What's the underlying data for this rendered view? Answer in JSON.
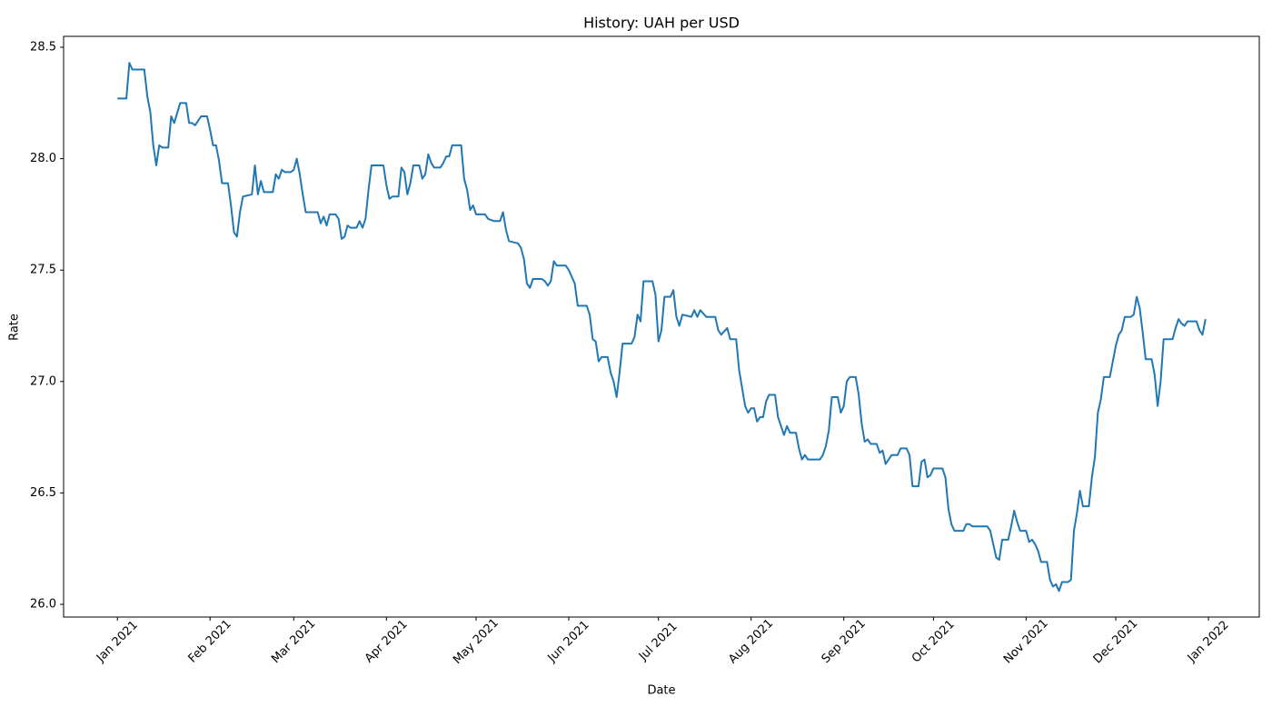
{
  "chart_data": {
    "type": "line",
    "title": "History: UAH per USD",
    "xlabel": "Date",
    "ylabel": "Rate",
    "color": "#1f77b4",
    "grid": false,
    "x": [
      "2021-01-01",
      "2021-01-04",
      "2021-01-05",
      "2021-01-06",
      "2021-01-10",
      "2021-01-11",
      "2021-01-12",
      "2021-01-13",
      "2021-01-14",
      "2021-01-15",
      "2021-01-16",
      "2021-01-18",
      "2021-01-19",
      "2021-01-20",
      "2021-01-22",
      "2021-01-24",
      "2021-01-25",
      "2021-01-26",
      "2021-01-27",
      "2021-01-28",
      "2021-01-29",
      "2021-01-31",
      "2021-02-01",
      "2021-02-02",
      "2021-02-03",
      "2021-02-04",
      "2021-02-05",
      "2021-02-07",
      "2021-02-08",
      "2021-02-09",
      "2021-02-10",
      "2021-02-11",
      "2021-02-12",
      "2021-02-15",
      "2021-02-16",
      "2021-02-17",
      "2021-02-18",
      "2021-02-19",
      "2021-02-22",
      "2021-02-23",
      "2021-02-24",
      "2021-02-25",
      "2021-02-26",
      "2021-02-28",
      "2021-03-01",
      "2021-03-02",
      "2021-03-03",
      "2021-03-04",
      "2021-03-05",
      "2021-03-09",
      "2021-03-10",
      "2021-03-11",
      "2021-03-12",
      "2021-03-13",
      "2021-03-15",
      "2021-03-16",
      "2021-03-17",
      "2021-03-18",
      "2021-03-19",
      "2021-03-20",
      "2021-03-22",
      "2021-03-23",
      "2021-03-24",
      "2021-03-25",
      "2021-03-26",
      "2021-03-27",
      "2021-03-31",
      "2021-04-01",
      "2021-04-02",
      "2021-04-03",
      "2021-04-05",
      "2021-04-06",
      "2021-04-07",
      "2021-04-08",
      "2021-04-09",
      "2021-04-10",
      "2021-04-12",
      "2021-04-13",
      "2021-04-14",
      "2021-04-15",
      "2021-04-16",
      "2021-04-17",
      "2021-04-19",
      "2021-04-20",
      "2021-04-21",
      "2021-04-22",
      "2021-04-23",
      "2021-04-26",
      "2021-04-27",
      "2021-04-28",
      "2021-04-29",
      "2021-04-30",
      "2021-05-01",
      "2021-05-04",
      "2021-05-05",
      "2021-05-07",
      "2021-05-09",
      "2021-05-10",
      "2021-05-11",
      "2021-05-12",
      "2021-05-15",
      "2021-05-16",
      "2021-05-17",
      "2021-05-18",
      "2021-05-19",
      "2021-05-20",
      "2021-05-23",
      "2021-05-24",
      "2021-05-25",
      "2021-05-26",
      "2021-05-27",
      "2021-05-28",
      "2021-05-31",
      "2021-06-01",
      "2021-06-03",
      "2021-06-04",
      "2021-06-07",
      "2021-06-08",
      "2021-06-09",
      "2021-06-10",
      "2021-06-11",
      "2021-06-12",
      "2021-06-14",
      "2021-06-15",
      "2021-06-16",
      "2021-06-17",
      "2021-06-18",
      "2021-06-19",
      "2021-06-22",
      "2021-06-23",
      "2021-06-24",
      "2021-06-25",
      "2021-06-26",
      "2021-06-29",
      "2021-06-30",
      "2021-07-01",
      "2021-07-02",
      "2021-07-03",
      "2021-07-05",
      "2021-07-06",
      "2021-07-07",
      "2021-07-08",
      "2021-07-09",
      "2021-07-12",
      "2021-07-13",
      "2021-07-14",
      "2021-07-15",
      "2021-07-17",
      "2021-07-20",
      "2021-07-21",
      "2021-07-22",
      "2021-07-24",
      "2021-07-25",
      "2021-07-27",
      "2021-07-28",
      "2021-07-29",
      "2021-07-30",
      "2021-07-31",
      "2021-08-01",
      "2021-08-02",
      "2021-08-03",
      "2021-08-04",
      "2021-08-05",
      "2021-08-06",
      "2021-08-07",
      "2021-08-09",
      "2021-08-10",
      "2021-08-11",
      "2021-08-12",
      "2021-08-13",
      "2021-08-14",
      "2021-08-16",
      "2021-08-17",
      "2021-08-18",
      "2021-08-19",
      "2021-08-20",
      "2021-08-24",
      "2021-08-25",
      "2021-08-26",
      "2021-08-27",
      "2021-08-28",
      "2021-08-30",
      "2021-08-31",
      "2021-09-01",
      "2021-09-02",
      "2021-09-03",
      "2021-09-05",
      "2021-09-06",
      "2021-09-07",
      "2021-09-08",
      "2021-09-09",
      "2021-09-10",
      "2021-09-12",
      "2021-09-13",
      "2021-09-14",
      "2021-09-15",
      "2021-09-16",
      "2021-09-17",
      "2021-09-19",
      "2021-09-20",
      "2021-09-22",
      "2021-09-23",
      "2021-09-24",
      "2021-09-26",
      "2021-09-27",
      "2021-09-28",
      "2021-09-29",
      "2021-09-30",
      "2021-10-01",
      "2021-10-04",
      "2021-10-05",
      "2021-10-06",
      "2021-10-07",
      "2021-10-08",
      "2021-10-11",
      "2021-10-12",
      "2021-10-13",
      "2021-10-14",
      "2021-10-19",
      "2021-10-20",
      "2021-10-21",
      "2021-10-22",
      "2021-10-23",
      "2021-10-24",
      "2021-10-26",
      "2021-10-27",
      "2021-10-28",
      "2021-10-29",
      "2021-10-30",
      "2021-11-01",
      "2021-11-02",
      "2021-11-03",
      "2021-11-04",
      "2021-11-05",
      "2021-11-06",
      "2021-11-08",
      "2021-11-09",
      "2021-11-10",
      "2021-11-11",
      "2021-11-12",
      "2021-11-13",
      "2021-11-15",
      "2021-11-16",
      "2021-11-17",
      "2021-11-18",
      "2021-11-19",
      "2021-11-20",
      "2021-11-22",
      "2021-11-23",
      "2021-11-24",
      "2021-11-25",
      "2021-11-26",
      "2021-11-27",
      "2021-11-29",
      "2021-11-30",
      "2021-12-01",
      "2021-12-02",
      "2021-12-03",
      "2021-12-04",
      "2021-12-06",
      "2021-12-07",
      "2021-12-08",
      "2021-12-09",
      "2021-12-10",
      "2021-12-11",
      "2021-12-13",
      "2021-12-14",
      "2021-12-15",
      "2021-12-16",
      "2021-12-17",
      "2021-12-20",
      "2021-12-21",
      "2021-12-22",
      "2021-12-23",
      "2021-12-24",
      "2021-12-25",
      "2021-12-28",
      "2021-12-29",
      "2021-12-30",
      "2021-12-31"
    ],
    "values": [
      28.27,
      28.27,
      28.43,
      28.4,
      28.4,
      28.28,
      28.21,
      28.06,
      27.97,
      28.06,
      28.05,
      28.05,
      28.19,
      28.16,
      28.25,
      28.25,
      28.16,
      28.16,
      28.15,
      28.17,
      28.19,
      28.19,
      28.13,
      28.06,
      28.06,
      27.99,
      27.89,
      27.89,
      27.79,
      27.67,
      27.65,
      27.76,
      27.83,
      27.84,
      27.97,
      27.84,
      27.9,
      27.85,
      27.85,
      27.93,
      27.91,
      27.95,
      27.94,
      27.94,
      27.95,
      28.0,
      27.93,
      27.84,
      27.76,
      27.76,
      27.71,
      27.74,
      27.7,
      27.75,
      27.75,
      27.73,
      27.64,
      27.65,
      27.7,
      27.69,
      27.69,
      27.72,
      27.69,
      27.73,
      27.86,
      27.97,
      27.97,
      27.88,
      27.82,
      27.83,
      27.83,
      27.96,
      27.94,
      27.84,
      27.89,
      27.97,
      27.97,
      27.91,
      27.93,
      28.02,
      27.98,
      27.96,
      27.96,
      27.98,
      28.01,
      28.01,
      28.06,
      28.06,
      27.91,
      27.86,
      27.77,
      27.79,
      27.75,
      27.75,
      27.73,
      27.72,
      27.72,
      27.76,
      27.68,
      27.63,
      27.62,
      27.6,
      27.55,
      27.44,
      27.42,
      27.46,
      27.46,
      27.45,
      27.43,
      27.45,
      27.54,
      27.52,
      27.52,
      27.5,
      27.44,
      27.34,
      27.34,
      27.3,
      27.19,
      27.18,
      27.09,
      27.11,
      27.11,
      27.04,
      27.0,
      26.93,
      27.04,
      27.17,
      27.17,
      27.2,
      27.3,
      27.27,
      27.45,
      27.45,
      27.39,
      27.18,
      27.23,
      27.38,
      27.38,
      27.41,
      27.29,
      27.25,
      27.3,
      27.29,
      27.32,
      27.29,
      27.32,
      27.29,
      27.29,
      27.23,
      27.21,
      27.24,
      27.19,
      27.19,
      27.05,
      26.97,
      26.89,
      26.86,
      26.88,
      26.88,
      26.82,
      26.84,
      26.84,
      26.91,
      26.94,
      26.94,
      26.84,
      26.8,
      26.76,
      26.8,
      26.77,
      26.77,
      26.7,
      26.65,
      26.67,
      26.65,
      26.65,
      26.67,
      26.71,
      26.78,
      26.93,
      26.93,
      26.86,
      26.89,
      27.0,
      27.02,
      27.02,
      26.94,
      26.81,
      26.73,
      26.74,
      26.72,
      26.72,
      26.68,
      26.69,
      26.63,
      26.65,
      26.67,
      26.67,
      26.7,
      26.7,
      26.67,
      26.53,
      26.53,
      26.64,
      26.65,
      26.57,
      26.58,
      26.61,
      26.61,
      26.57,
      26.43,
      26.36,
      26.33,
      26.33,
      26.36,
      26.36,
      26.35,
      26.35,
      26.33,
      26.27,
      26.21,
      26.2,
      26.29,
      26.29,
      26.35,
      26.42,
      26.37,
      26.33,
      26.33,
      26.28,
      26.29,
      26.27,
      26.24,
      26.19,
      26.19,
      26.11,
      26.08,
      26.09,
      26.06,
      26.1,
      26.1,
      26.11,
      26.33,
      26.41,
      26.51,
      26.44,
      26.44,
      26.57,
      26.66,
      26.86,
      26.92,
      27.02,
      27.02,
      27.09,
      27.16,
      27.21,
      27.23,
      27.29,
      27.29,
      27.3,
      27.38,
      27.33,
      27.22,
      27.1,
      27.1,
      27.03,
      26.89,
      27.0,
      27.19,
      27.19,
      27.24,
      27.28,
      27.26,
      27.25,
      27.27,
      27.27,
      27.23,
      27.21,
      27.28
    ],
    "xlim": [
      "2020-12-14",
      "2022-01-18"
    ],
    "xticks": [
      {
        "value": "2021-01-01",
        "label": "Jan 2021"
      },
      {
        "value": "2021-02-01",
        "label": "Feb 2021"
      },
      {
        "value": "2021-03-01",
        "label": "Mar 2021"
      },
      {
        "value": "2021-04-01",
        "label": "Apr 2021"
      },
      {
        "value": "2021-05-01",
        "label": "May 2021"
      },
      {
        "value": "2021-06-01",
        "label": "Jun 2021"
      },
      {
        "value": "2021-07-01",
        "label": "Jul 2021"
      },
      {
        "value": "2021-08-01",
        "label": "Aug 2021"
      },
      {
        "value": "2021-09-01",
        "label": "Sep 2021"
      },
      {
        "value": "2021-10-01",
        "label": "Oct 2021"
      },
      {
        "value": "2021-11-01",
        "label": "Nov 2021"
      },
      {
        "value": "2021-12-01",
        "label": "Dec 2021"
      },
      {
        "value": "2022-01-01",
        "label": "Jan 2022"
      }
    ],
    "ylim": [
      25.943,
      28.549
    ],
    "yticks": [
      {
        "value": 26,
        "label": "26.0"
      },
      26.5,
      {
        "value": 27,
        "label": "27.0"
      },
      27.5,
      {
        "value": 28,
        "label": "28.0"
      },
      28.5
    ]
  }
}
